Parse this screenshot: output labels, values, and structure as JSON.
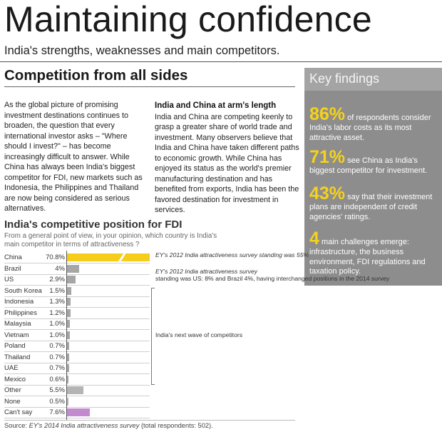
{
  "title": "Maintaining confidence",
  "subtitle": "India's strengths, weaknesses and main competitors.",
  "section_title": "Competition from all sides",
  "intro": "As the global picture of promising investment destinations continues to broaden, the question that every international investor asks – \"Where should I invest?\" – has become increasingly difficult to answer. While China has always been India's biggest competitor for FDI, new markets such as Indonesia, the Philippines and Thailand are now being considered as serious alternatives.",
  "col2": {
    "heading": "India and China at arm's length",
    "text": "India and China are competing keenly to grasp a greater share of world trade and investment. Many observers believe that India and China have taken different paths to economic growth. While China has enjoyed its status as the world's premier manufacturing destination and has benefited from exports, India has been the favored destination for investment in services."
  },
  "key_findings": {
    "title": "Key findings",
    "items": [
      {
        "big": "86%",
        "lead": "of respondents consider",
        "rest": "India's labor costs as its most attractive asset."
      },
      {
        "big": "71%",
        "lead": "see China as India's",
        "rest": "biggest competitor for investment."
      },
      {
        "big": "43%",
        "lead": "say that their investment",
        "rest": "plans are independent of credit agencies' ratings."
      },
      {
        "big": "4",
        "lead": "main challenges emerge:",
        "rest": "infrastructure, the business environment, FDI regulations and taxation policy."
      }
    ],
    "colors": {
      "panel": "#8d8d8d",
      "header": "#a4a4a4",
      "accent": "#f6d21a"
    }
  },
  "chart_data": {
    "type": "bar",
    "title": "India's competitive position for FDI",
    "question": "From a general point of view, in your opinion, which  country is India's main competitor in terms of attractiveness ?",
    "categories": [
      "China",
      "Brazil",
      "US",
      "South Korea",
      "Indonesia",
      "Philippines",
      "Malaysia",
      "Vietnam",
      "Poland",
      "Thailand",
      "UAE",
      "Mexico",
      "Other",
      "None",
      "Can't say"
    ],
    "values": [
      70.8,
      4,
      2.9,
      1.5,
      1.3,
      1.2,
      1.0,
      1.0,
      0.7,
      0.7,
      0.7,
      0.6,
      5.5,
      0.5,
      7.6
    ],
    "value_labels": [
      "70.8%",
      "4%",
      "2.9%",
      "1.5%",
      "1.3%",
      "1.2%",
      "1.0%",
      "1.0%",
      "0.7%",
      "0.7%",
      "0.7%",
      "0.6%",
      "5.5%",
      "0.5%",
      "7.6%"
    ],
    "bar_colors": [
      "#f5cd1a",
      "#a6a6a6",
      "#a6a6a6",
      "#a6a6a6",
      "#a6a6a6",
      "#a6a6a6",
      "#a6a6a6",
      "#a6a6a6",
      "#a6a6a6",
      "#a6a6a6",
      "#a6a6a6",
      "#a6a6a6",
      "#b4b4b4",
      "#b4b4b4",
      "#c48ad0"
    ],
    "notes": {
      "china": "EY's 2012 India attractiveness survey standing was 55%",
      "brazil_us_lead": "EY's 2012 India attractiveness survey",
      "brazil_us_rest": "standing was US: 8% and Brazil 4%, having interchanged positions in the 2014 survey",
      "next_wave": "India's next wave of competitors"
    },
    "source_prefix": "Source: ",
    "source_title": "EY's 2014 India attractiveness survey",
    "source_suffix": " (total respondents: 502)."
  }
}
